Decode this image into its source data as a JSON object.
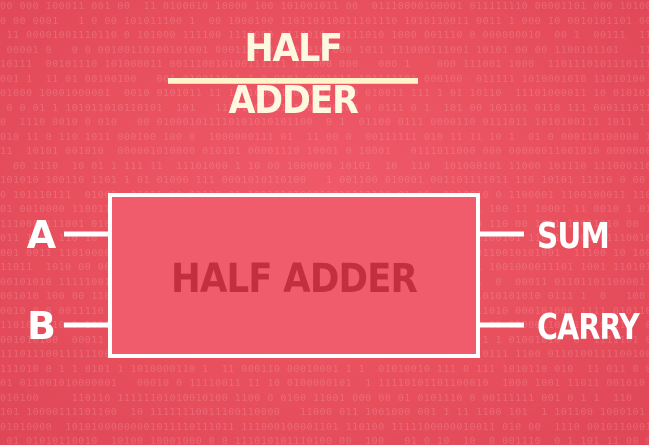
{
  "title": "HALF ADDER",
  "block": {
    "label": "HALF ADDER"
  },
  "inputs": [
    {
      "label": "A"
    },
    {
      "label": "B"
    }
  ],
  "outputs": [
    {
      "label": "SUM"
    },
    {
      "label": "CARRY"
    }
  ],
  "colors": {
    "background": "#e8505e",
    "block_fill": "#f05c6b",
    "block_stroke": "#ffffff",
    "block_text": "#c22f3e",
    "title_text": "#fff8e0",
    "title_underline": "#fff3c9",
    "wire": "#ffffff"
  }
}
